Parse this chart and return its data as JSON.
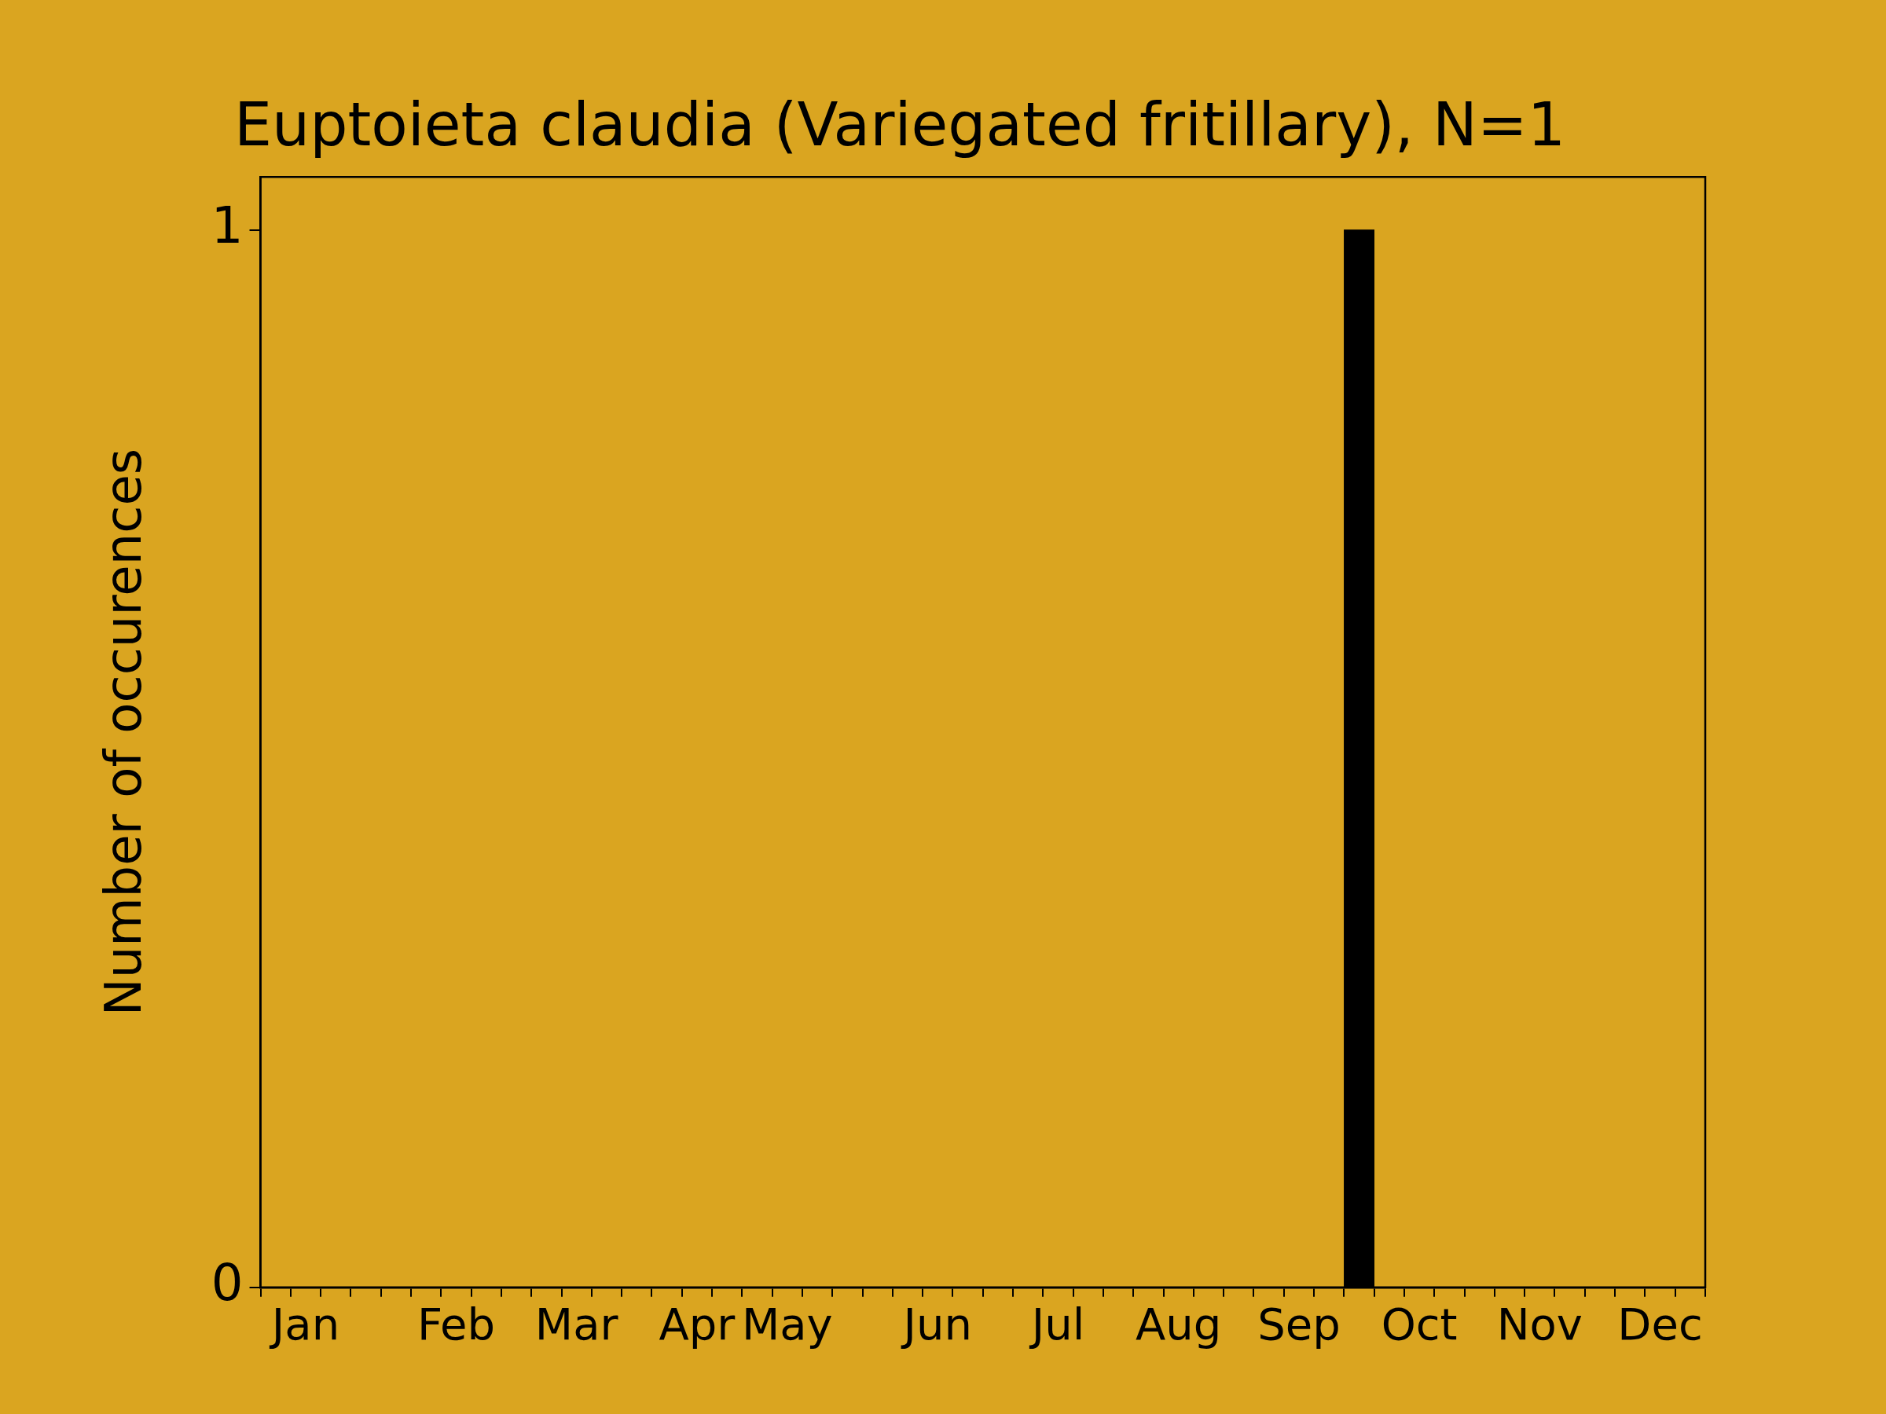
{
  "chart_data": {
    "type": "bar",
    "title": "Euptoieta claudia (Variegated fritillary), N=1",
    "ylabel": "Number of occurences",
    "categories": [
      null,
      "Jan",
      null,
      null,
      null,
      null,
      "Feb",
      null,
      null,
      null,
      "Mar",
      null,
      null,
      null,
      "Apr",
      null,
      null,
      "May",
      null,
      null,
      null,
      null,
      "Jun",
      null,
      null,
      null,
      "Jul",
      null,
      null,
      null,
      "Aug",
      null,
      null,
      null,
      "Sep",
      null,
      null,
      null,
      "Oct",
      null,
      null,
      null,
      "Nov",
      null,
      null,
      null,
      "Dec",
      null
    ],
    "values": [
      0,
      0,
      0,
      0,
      0,
      0,
      0,
      0,
      0,
      0,
      0,
      0,
      0,
      0,
      0,
      0,
      0,
      0,
      0,
      0,
      0,
      0,
      0,
      0,
      0,
      0,
      0,
      0,
      0,
      0,
      0,
      0,
      0,
      0,
      0,
      0,
      1,
      0,
      0,
      0,
      0,
      0,
      0,
      0,
      0,
      0,
      0,
      0
    ],
    "color": "#000000",
    "ylim": [
      0,
      1.05
    ],
    "yticks": [
      0,
      1
    ]
  }
}
